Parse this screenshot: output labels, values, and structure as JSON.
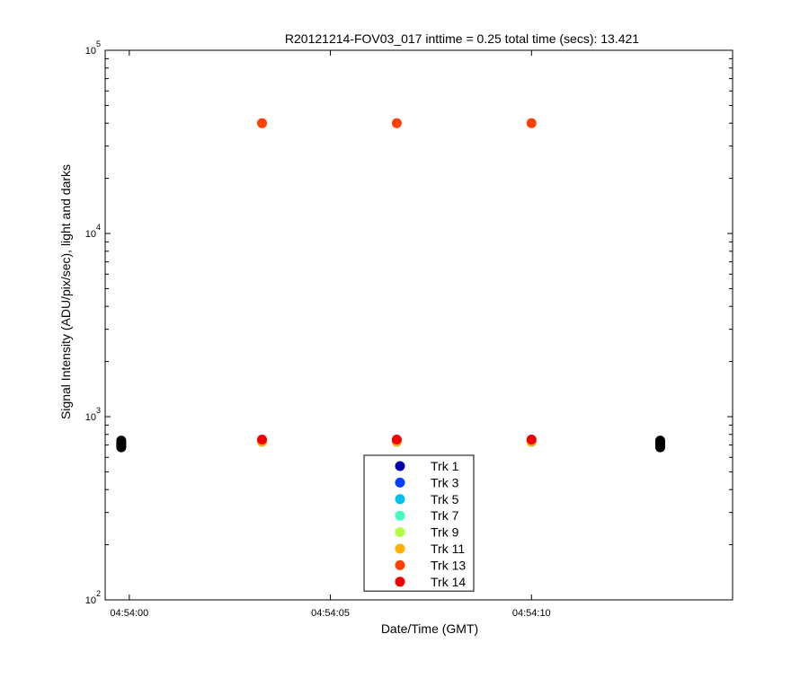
{
  "chart_data": {
    "type": "scatter",
    "title": "R20121214-FOV03_017 inttime = 0.25 total time (secs): 13.421",
    "xlabel": "Date/Time (GMT)",
    "ylabel": "Signal Intensity (ADU/pix/sec), light and darks",
    "yscale": "log",
    "xlim_seconds_after_04_54_00": [
      -0.6,
      15.0
    ],
    "ylim": [
      100,
      100000
    ],
    "x_ticks": [
      {
        "t": 0,
        "label": "04:54:00"
      },
      {
        "t": 5,
        "label": "04:54:05"
      },
      {
        "t": 10,
        "label": "04:54:10"
      }
    ],
    "y_ticks": [
      {
        "v": 100,
        "base": "10",
        "exp": "2"
      },
      {
        "v": 1000,
        "base": "10",
        "exp": "3"
      },
      {
        "v": 10000,
        "base": "10",
        "exp": "4"
      },
      {
        "v": 100000,
        "base": "10",
        "exp": "5"
      }
    ],
    "grid": false,
    "legend_position": "bottom-center",
    "series": [
      {
        "name": "Trk 1",
        "color": "#0000b0",
        "x": [
          3.3,
          6.65,
          10.0
        ],
        "y": [
          730,
          730,
          730
        ]
      },
      {
        "name": "Trk 3",
        "color": "#0040ff",
        "x": [
          3.3,
          6.65,
          10.0
        ],
        "y": [
          730,
          730,
          730
        ]
      },
      {
        "name": "Trk 5",
        "color": "#00c0f0",
        "x": [
          3.3,
          6.65,
          10.0
        ],
        "y": [
          730,
          730,
          730
        ]
      },
      {
        "name": "Trk 7",
        "color": "#40ffc0",
        "x": [
          3.3,
          6.65,
          10.0
        ],
        "y": [
          730,
          730,
          730
        ]
      },
      {
        "name": "Trk 9",
        "color": "#b0ff40",
        "x": [
          3.3,
          6.65,
          10.0
        ],
        "y": [
          730,
          730,
          730
        ]
      },
      {
        "name": "Trk 11",
        "color": "#ffb000",
        "x": [
          3.3,
          6.65,
          10.0
        ],
        "y": [
          730,
          730,
          730
        ]
      },
      {
        "name": "Trk 13",
        "color": "#ff4000",
        "x": [
          3.3,
          6.65,
          10.0
        ],
        "y": [
          40000,
          40000,
          40000
        ]
      },
      {
        "name": "Trk 14",
        "color": "#f00000",
        "x": [
          3.3,
          6.65,
          10.0
        ],
        "y": [
          750,
          750,
          750
        ]
      }
    ],
    "dark_points": {
      "color": "#000000",
      "x": [
        -0.2,
        -0.2,
        -0.2,
        -0.2,
        -0.2,
        13.2,
        13.2,
        13.2,
        13.2,
        13.2
      ],
      "y": [
        680,
        695,
        710,
        725,
        740,
        680,
        695,
        710,
        725,
        740
      ]
    }
  }
}
